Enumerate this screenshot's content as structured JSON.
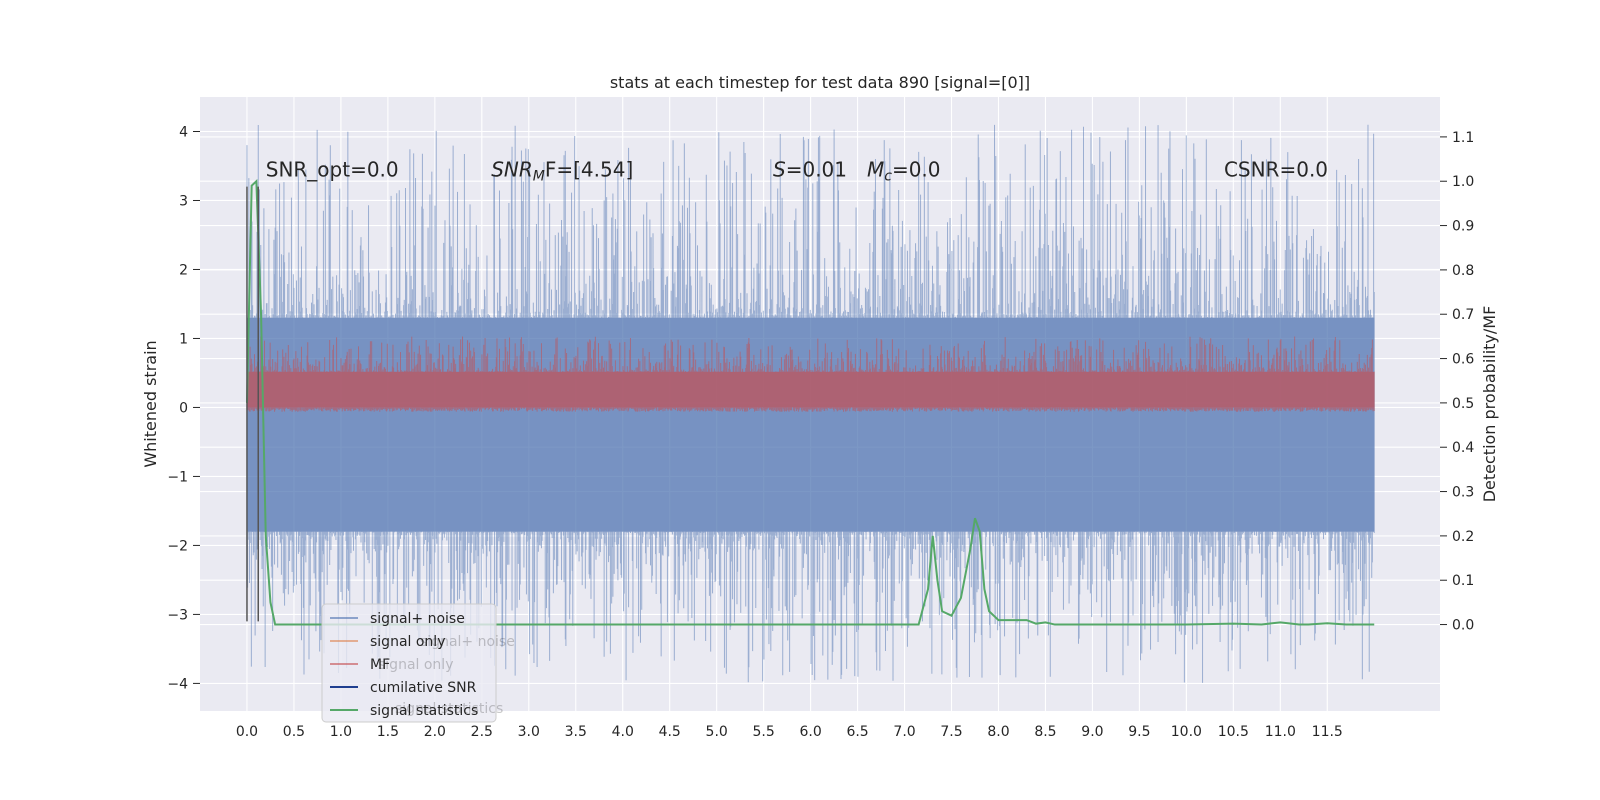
{
  "chart_data": {
    "type": "line",
    "title": "stats at each timestep for test data 890 [signal=[0]]",
    "xlabel": "",
    "ylabel": "Whitened strain",
    "y2label": "Detection probability/MF",
    "xlim": [
      -0.5,
      12.7
    ],
    "ylim": [
      -4.4,
      4.5
    ],
    "y2lim": [
      -0.195,
      1.19
    ],
    "xticks": [
      0.0,
      0.5,
      1.0,
      1.5,
      2.0,
      2.5,
      3.0,
      3.5,
      4.0,
      4.5,
      5.0,
      5.5,
      6.0,
      6.5,
      7.0,
      7.5,
      8.0,
      8.5,
      9.0,
      9.5,
      10.0,
      10.5,
      11.0,
      11.5
    ],
    "xtick_labels": [
      "0.0",
      "0.5",
      "1.0",
      "1.5",
      "2.0",
      "2.5",
      "3.0",
      "3.5",
      "4.0",
      "4.5",
      "5.0",
      "5.5",
      "6.0",
      "6.5",
      "7.0",
      "7.5",
      "8.0",
      "8.5",
      "9.0",
      "9.5",
      "10.0",
      "10.5",
      "11.0",
      "11.5"
    ],
    "yticks": [
      -4,
      -3,
      -2,
      -1,
      0,
      1,
      2,
      3,
      4
    ],
    "ytick_labels": [
      "−4",
      "−3",
      "−2",
      "−1",
      "0",
      "1",
      "2",
      "3",
      "4"
    ],
    "y2ticks": [
      0.0,
      0.1,
      0.2,
      0.3,
      0.4,
      0.5,
      0.6,
      0.7,
      0.8,
      0.9,
      1.0,
      1.1
    ],
    "y2tick_labels": [
      "0.0",
      "0.1",
      "0.2",
      "0.3",
      "0.4",
      "0.5",
      "0.6",
      "0.7",
      "0.8",
      "0.9",
      "1.0",
      "1.1"
    ],
    "grid": true,
    "legend": {
      "placement": "lower-left",
      "entries": [
        {
          "label": "signal+ noise",
          "color": "#4c72b0"
        },
        {
          "label": "signal only",
          "color": "#dd8452"
        },
        {
          "label": "MF",
          "color": "#c44e52"
        },
        {
          "label": "cumilative SNR",
          "color": "#1f3f8f"
        },
        {
          "label": "signal statistics",
          "color": "#55a868"
        }
      ],
      "ghost_entries": [
        "signal+ noise",
        "signal only",
        "signal statistics"
      ]
    },
    "annotations": [
      {
        "text": "SNR_opt=0.0",
        "x": 0.2,
        "y": 3.35
      },
      {
        "math": "SNR",
        "sub": "M",
        "tail": "F=[4.54]",
        "x": 2.6,
        "y": 3.35
      },
      {
        "math": "S",
        "tail": "=0.01",
        "x": 5.6,
        "y": 3.35
      },
      {
        "math": "M",
        "sub": "c",
        "tail": "=0.0",
        "x": 6.6,
        "y": 3.35
      },
      {
        "text": "CSNR=0.0",
        "x": 10.4,
        "y": 3.35
      }
    ],
    "series": [
      {
        "name": "signal+ noise",
        "axis": "left",
        "color": "#4c72b0",
        "x_range": [
          0.0,
          12.0
        ],
        "envelope": {
          "band_low": -1.8,
          "band_high": 1.3,
          "peak_low": -4.0,
          "peak_high": 4.1
        }
      },
      {
        "name": "MF",
        "axis": "right",
        "color": "#c44e52",
        "x_range": [
          0.0,
          12.0
        ],
        "envelope": {
          "band_low": 0.49,
          "band_high": 0.57,
          "peak_high": 0.65
        }
      },
      {
        "name": "signal statistics",
        "axis": "right",
        "color": "#55a868",
        "x": [
          0.0,
          0.05,
          0.1,
          0.15,
          0.2,
          0.25,
          0.3,
          0.4,
          0.6,
          1.0,
          3.0,
          5.0,
          6.5,
          6.8,
          7.0,
          7.15,
          7.25,
          7.3,
          7.35,
          7.4,
          7.5,
          7.6,
          7.7,
          7.75,
          7.8,
          7.85,
          7.9,
          8.0,
          8.2,
          8.3,
          8.4,
          8.5,
          8.6,
          8.8,
          9.0,
          10.0,
          10.5,
          10.8,
          11.0,
          11.2,
          11.3,
          11.5,
          11.7,
          12.0
        ],
        "y": [
          0.5,
          0.99,
          1.0,
          0.7,
          0.2,
          0.05,
          0.0,
          0.0,
          0.0,
          0.0,
          0.0,
          0.0,
          0.0,
          0.0,
          0.0,
          0.0,
          0.08,
          0.2,
          0.1,
          0.03,
          0.02,
          0.06,
          0.17,
          0.24,
          0.21,
          0.08,
          0.03,
          0.01,
          0.01,
          0.01,
          0.002,
          0.005,
          0.0,
          0.0,
          0.0,
          0.0,
          0.002,
          0.0,
          0.005,
          0.0,
          0.0,
          0.003,
          0.0,
          0.0
        ]
      }
    ],
    "vertical_lines": [
      {
        "x": 0.0,
        "y_range": [
          -3.1,
          3.2
        ],
        "color": "#555555"
      },
      {
        "x": 0.12,
        "y_range": [
          -3.1,
          3.2
        ],
        "color": "#555555"
      }
    ]
  }
}
